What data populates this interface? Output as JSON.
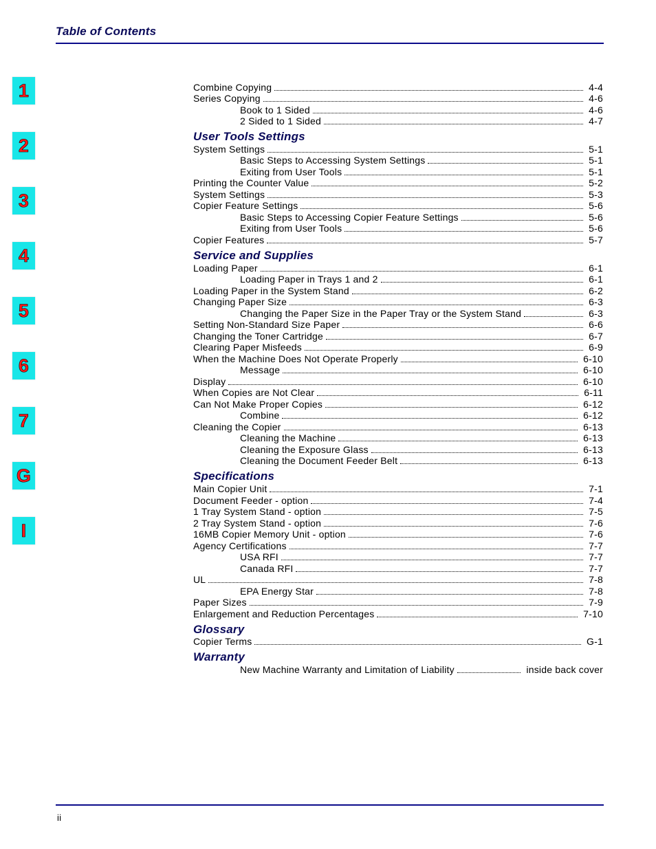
{
  "header": {
    "title": "Table of Contents"
  },
  "colors": {
    "header_text": "#0a0a5a",
    "rule": "#0a0a8a",
    "tab_bg": "#19e6e8",
    "tab_text": "#ff1a1a"
  },
  "tabs": [
    "1",
    "2",
    "3",
    "4",
    "5",
    "6",
    "7",
    "G",
    "I"
  ],
  "footer": {
    "page": "ii"
  },
  "sections": [
    {
      "heading": null,
      "rows": [
        {
          "indent": 0,
          "text": "Combine Copying",
          "page": "4-4"
        },
        {
          "indent": 0,
          "text": "Series Copying",
          "page": "4-6"
        },
        {
          "indent": 1,
          "text": "Book to 1 Sided",
          "page": "4-6"
        },
        {
          "indent": 1,
          "text": "2 Sided to 1 Sided",
          "page": "4-7"
        }
      ]
    },
    {
      "heading": "User Tools Settings",
      "rows": [
        {
          "indent": 0,
          "text": "System Settings",
          "page": "5-1"
        },
        {
          "indent": 1,
          "text": "Basic Steps to Accessing System Settings",
          "page": "5-1"
        },
        {
          "indent": 1,
          "text": "Exiting from User Tools",
          "page": "5-1"
        },
        {
          "indent": 0,
          "text": "Printing the Counter Value",
          "page": "5-2"
        },
        {
          "indent": 0,
          "text": "System Settings",
          "page": "5-3"
        },
        {
          "indent": 0,
          "text": "Copier Feature Settings",
          "page": "5-6"
        },
        {
          "indent": 1,
          "text": "Basic Steps to Accessing Copier Feature Settings",
          "page": "5-6"
        },
        {
          "indent": 1,
          "text": "Exiting from User Tools",
          "page": "5-6"
        },
        {
          "indent": 0,
          "text": "Copier Features",
          "page": "5-7"
        }
      ]
    },
    {
      "heading": "Service and Supplies",
      "rows": [
        {
          "indent": 0,
          "text": "Loading Paper",
          "page": "6-1"
        },
        {
          "indent": 1,
          "text": "Loading Paper in Trays 1 and 2",
          "page": "6-1"
        },
        {
          "indent": 0,
          "text": "Loading Paper in the System Stand",
          "page": "6-2"
        },
        {
          "indent": 0,
          "text": "Changing Paper Size",
          "page": "6-3"
        },
        {
          "indent": 1,
          "text": "Changing the Paper Size in the Paper Tray or the System Stand",
          "page": "6-3"
        },
        {
          "indent": 0,
          "text": "Setting Non-Standard Size Paper",
          "page": "6-6"
        },
        {
          "indent": 0,
          "text": "Changing the Toner Cartridge",
          "page": "6-7"
        },
        {
          "indent": 0,
          "text": "Clearing Paper Misfeeds",
          "page": "6-9"
        },
        {
          "indent": 0,
          "text": "When the Machine Does Not Operate Properly",
          "page": "6-10"
        },
        {
          "indent": 1,
          "text": "Message",
          "page": "6-10"
        },
        {
          "indent": 0,
          "text": "Display",
          "page": "6-10"
        },
        {
          "indent": 0,
          "text": "When Copies are Not Clear",
          "page": "6-11"
        },
        {
          "indent": 0,
          "text": "Can Not Make Proper Copies",
          "page": "6-12"
        },
        {
          "indent": 1,
          "text": "Combine",
          "page": "6-12"
        },
        {
          "indent": 0,
          "text": "Cleaning the Copier",
          "page": "6-13"
        },
        {
          "indent": 1,
          "text": "Cleaning the Machine",
          "page": "6-13"
        },
        {
          "indent": 1,
          "text": "Cleaning the Exposure Glass",
          "page": "6-13"
        },
        {
          "indent": 1,
          "text": "Cleaning the Document Feeder Belt",
          "page": "6-13"
        }
      ]
    },
    {
      "heading": "Specifications",
      "rows": [
        {
          "indent": 0,
          "text": "Main Copier Unit",
          "page": "7-1"
        },
        {
          "indent": 0,
          "text": "Document Feeder - option",
          "page": "7-4"
        },
        {
          "indent": 0,
          "text": "1 Tray System Stand - option",
          "page": "7-5"
        },
        {
          "indent": 0,
          "text": "2 Tray System Stand - option",
          "page": "7-6"
        },
        {
          "indent": 0,
          "text": "16MB Copier Memory Unit - option",
          "page": "7-6"
        },
        {
          "indent": 0,
          "text": "Agency Certifications",
          "page": "7-7"
        },
        {
          "indent": 1,
          "text": "USA RFI",
          "page": "7-7"
        },
        {
          "indent": 1,
          "text": "Canada RFI",
          "page": "7-7"
        },
        {
          "indent": 0,
          "text": "UL",
          "page": "7-8"
        },
        {
          "indent": 1,
          "text": "EPA Energy Star",
          "page": "7-8"
        },
        {
          "indent": 0,
          "text": "Paper Sizes",
          "page": "7-9"
        },
        {
          "indent": 0,
          "text": "Enlargement and Reduction Percentages",
          "page": "7-10"
        }
      ]
    },
    {
      "heading": "Glossary",
      "rows": [
        {
          "indent": 0,
          "text": "Copier Terms",
          "page": "G-1"
        }
      ]
    },
    {
      "heading": "Warranty",
      "rows": [
        {
          "indent": 1,
          "text": "New Machine Warranty and Limitation of Liability",
          "page": "inside back cover"
        }
      ]
    }
  ]
}
